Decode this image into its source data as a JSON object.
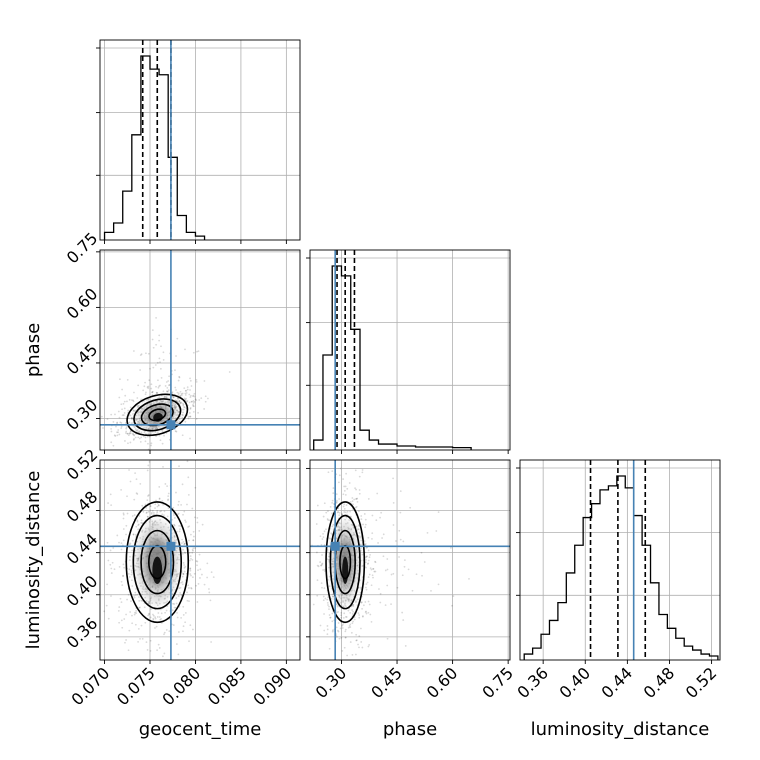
{
  "chart_data": {
    "type": "corner",
    "parameters": [
      "geocent_time",
      "phase",
      "luminosity_distance"
    ],
    "axis_labels": {
      "geocent_time": "geocent_time",
      "phase": "phase",
      "luminosity_distance": "luminosity_distance"
    },
    "ranges": {
      "geocent_time": [
        0.0695,
        0.0915
      ],
      "phase": [
        0.215,
        0.755
      ],
      "luminosity_distance": [
        0.338,
        0.528
      ]
    },
    "ticks": {
      "geocent_time": [
        "0.070",
        "0.075",
        "0.080",
        "0.085",
        "0.090"
      ],
      "phase": [
        "0.30",
        "0.45",
        "0.60",
        "0.75"
      ],
      "luminosity_distance": [
        "0.36",
        "0.40",
        "0.44",
        "0.48",
        "0.52"
      ]
    },
    "truths": {
      "geocent_time": 0.0773,
      "phase": 0.283,
      "luminosity_distance": 0.446
    },
    "quantiles": {
      "geocent_time": [
        0.0742,
        0.0758,
        0.0773
      ],
      "phase": [
        0.288,
        0.31,
        0.335
      ],
      "luminosity_distance": [
        0.405,
        0.431,
        0.457
      ]
    },
    "histograms": {
      "geocent_time": {
        "edges": [
          0.07,
          0.071,
          0.072,
          0.073,
          0.074,
          0.075,
          0.076,
          0.077,
          0.078,
          0.079,
          0.08,
          0.081
        ],
        "counts": [
          0.03,
          0.08,
          0.25,
          0.55,
          0.97,
          0.9,
          0.87,
          0.43,
          0.12,
          0.03,
          0.01
        ]
      },
      "phase": {
        "edges": [
          0.225,
          0.25,
          0.275,
          0.3,
          0.325,
          0.35,
          0.375,
          0.4,
          0.45,
          0.5,
          0.6,
          0.65
        ],
        "counts": [
          0.04,
          0.47,
          0.92,
          0.87,
          0.6,
          0.09,
          0.04,
          0.02,
          0.01,
          0.005,
          0.002
        ]
      },
      "luminosity_distance": {
        "edges": [
          0.342,
          0.35,
          0.358,
          0.366,
          0.374,
          0.382,
          0.39,
          0.398,
          0.406,
          0.414,
          0.422,
          0.43,
          0.438,
          0.446,
          0.454,
          0.462,
          0.47,
          0.478,
          0.486,
          0.494,
          0.502,
          0.51,
          0.518,
          0.526
        ],
        "counts": [
          0.02,
          0.05,
          0.12,
          0.19,
          0.28,
          0.43,
          0.57,
          0.71,
          0.78,
          0.85,
          0.87,
          0.92,
          0.86,
          0.72,
          0.57,
          0.38,
          0.22,
          0.15,
          0.1,
          0.06,
          0.04,
          0.02,
          0.01
        ]
      }
    },
    "correlations": {
      "phase_vs_geocent_time": 0.5,
      "luminosity_distance_vs_geocent_time": 0.0,
      "luminosity_distance_vs_phase": 0.0
    },
    "colors": {
      "truth": "#4682b4",
      "hist": "#000000",
      "quantile": "#000000",
      "grid": "#b0b0b0"
    },
    "grid": true
  }
}
